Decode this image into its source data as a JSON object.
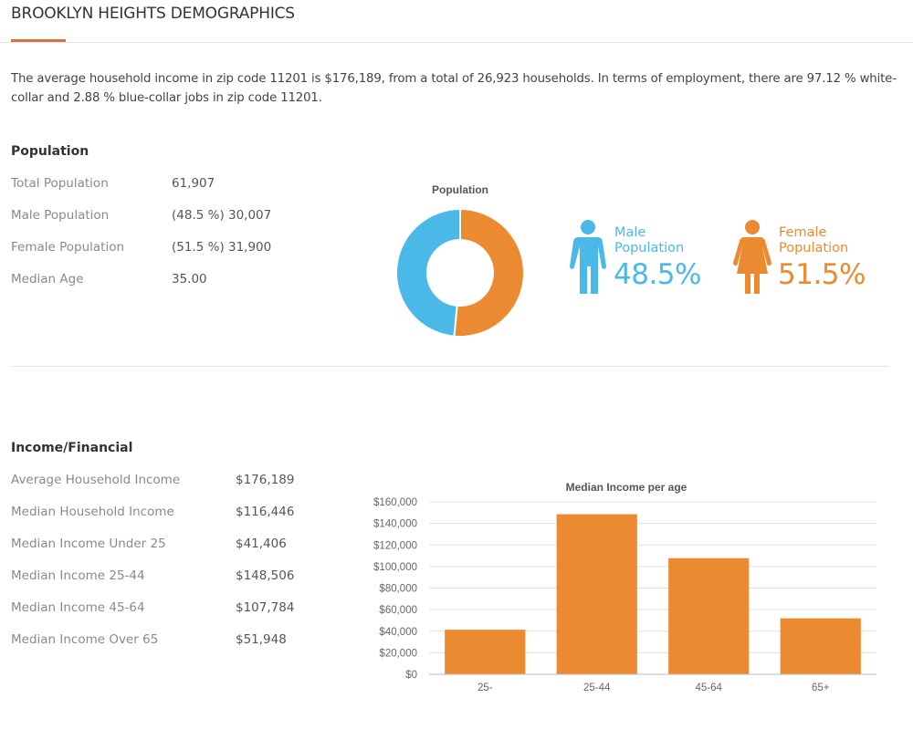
{
  "page": {
    "title": "BROOKLYN HEIGHTS DEMOGRAPHICS",
    "intro": "The average household income in zip code 11201 is $176,189, from a total of 26,923 households. In terms of employment, there are 97.12 % white-collar and 2.88 % blue-collar jobs in zip code 11201."
  },
  "colors": {
    "accent": "#d3743f",
    "male": "#4ab9e8",
    "female": "#ec8a31",
    "bar": "#ec8a31"
  },
  "population": {
    "heading": "Population",
    "rows": [
      {
        "label": "Total Population",
        "value": "61,907"
      },
      {
        "label": "Male Population",
        "value": "(48.5 %) 30,007"
      },
      {
        "label": "Female Population",
        "value": "(51.5 %) 31,900"
      },
      {
        "label": "Median Age",
        "value": "35.00"
      }
    ],
    "donut_title": "Population",
    "male": {
      "label_line1": "Male",
      "label_line2": "Population",
      "value": "48.5%",
      "icon": "male-person-icon"
    },
    "female": {
      "label_line1": "Female",
      "label_line2": "Population",
      "value": "51.5%",
      "icon": "female-person-icon"
    }
  },
  "income": {
    "heading": "Income/Financial",
    "rows": [
      {
        "label": "Average Household Income",
        "value": "$176,189"
      },
      {
        "label": "Median Household Income",
        "value": "$116,446"
      },
      {
        "label": "Median Income Under 25",
        "value": "$41,406"
      },
      {
        "label": "Median Income 25-44",
        "value": "$148,506"
      },
      {
        "label": "Median Income 45-64",
        "value": "$107,784"
      },
      {
        "label": "Median Income Over 65",
        "value": "$51,948"
      }
    ]
  },
  "chart_data": [
    {
      "type": "pie",
      "title": "Population",
      "donut": true,
      "categories": [
        "Female",
        "Male"
      ],
      "values": [
        51.5,
        48.5
      ],
      "colors": [
        "#ec8a31",
        "#4ab9e8"
      ]
    },
    {
      "type": "bar",
      "title": "Median Income per age",
      "categories": [
        "25-",
        "25-44",
        "45-64",
        "65+"
      ],
      "values": [
        41406,
        148506,
        107784,
        51948
      ],
      "xlabel": "",
      "ylabel": "",
      "ylim": [
        0,
        160000
      ],
      "yticks": [
        0,
        20000,
        40000,
        60000,
        80000,
        100000,
        120000,
        140000,
        160000
      ],
      "ytick_labels": [
        "$0",
        "$20,000",
        "$40,000",
        "$60,000",
        "$80,000",
        "$100,000",
        "$120,000",
        "$140,000",
        "$160,000"
      ],
      "grid": true,
      "legend": "none"
    }
  ]
}
